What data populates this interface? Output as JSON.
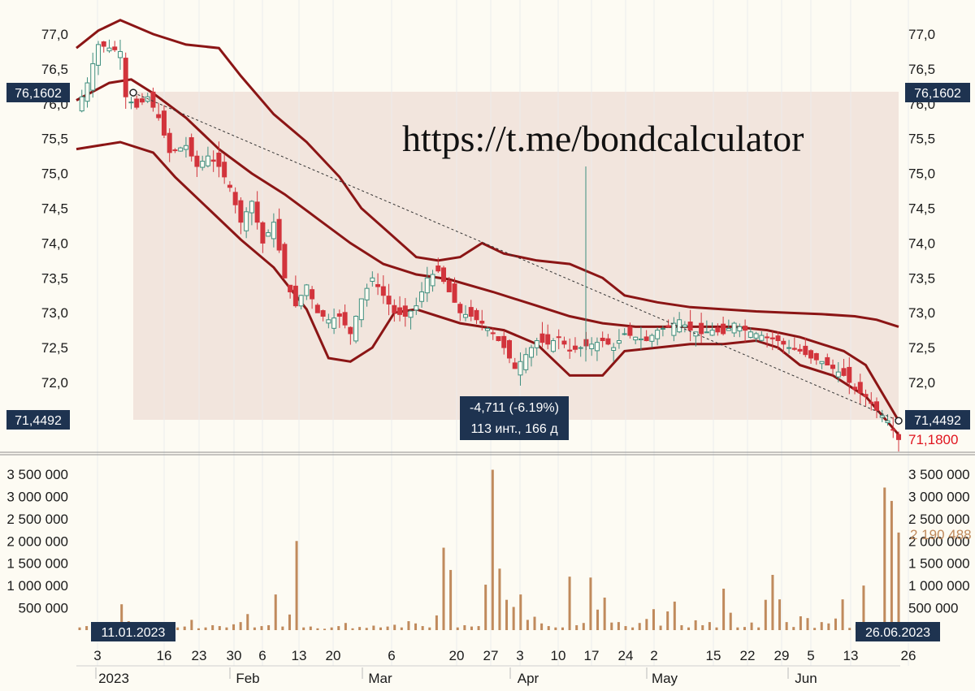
{
  "chart_data": [
    {
      "type": "candlestick",
      "title": "",
      "watermark": "https://t.me/bondcalculator",
      "ylim": [
        71.0,
        77.2
      ],
      "y_ticks": [
        {
          "v": 72.0,
          "label": "72,0"
        },
        {
          "v": 72.5,
          "label": "72,5"
        },
        {
          "v": 73.0,
          "label": "73,0"
        },
        {
          "v": 73.5,
          "label": "73,5"
        },
        {
          "v": 74.0,
          "label": "74,0"
        },
        {
          "v": 74.5,
          "label": "74,5"
        },
        {
          "v": 75.0,
          "label": "75,0"
        },
        {
          "v": 75.5,
          "label": "75,5"
        },
        {
          "v": 76.0,
          "label": "76,0"
        },
        {
          "v": 76.5,
          "label": "76,5"
        },
        {
          "v": 77.0,
          "label": "77,0"
        }
      ],
      "x_ticks": [
        "3",
        "16",
        "23",
        "30",
        "6",
        "13",
        "20",
        "6",
        "20",
        "27",
        "3",
        "10",
        "17",
        "24",
        "2",
        "15",
        "22",
        "29",
        "5",
        "13",
        "26"
      ],
      "month_labels": [
        "2023",
        "Feb",
        "Mar",
        "Apr",
        "May",
        "Jun"
      ],
      "price_tags": {
        "start_level": {
          "value": 76.1602,
          "label": "76,1602"
        },
        "end_level": {
          "value": 71.4492,
          "label": "71,4492"
        },
        "last_price": {
          "value": 71.18,
          "label": "71,1800"
        }
      },
      "measure": {
        "change": "-4,711 (-6.19%)",
        "span": "113 инт., 166 д",
        "start_date": "11.01.2023",
        "end_date": "26.06.2023"
      },
      "colors": {
        "up": "#3f8f7f",
        "down": "#d2343c",
        "bands": "#8b1515",
        "shade": "#f2e5dd",
        "tag_bg": "#1e3350",
        "last_price": "#e0141e"
      },
      "series": {
        "bollinger_upper": [
          [
            0,
            76.8
          ],
          [
            4,
            77.05
          ],
          [
            8,
            77.2
          ],
          [
            14,
            77.0
          ],
          [
            20,
            76.85
          ],
          [
            26,
            76.8
          ],
          [
            30,
            76.4
          ],
          [
            36,
            75.85
          ],
          [
            42,
            75.45
          ],
          [
            48,
            74.95
          ],
          [
            52,
            74.5
          ],
          [
            57,
            74.15
          ],
          [
            62,
            73.8
          ],
          [
            66,
            73.75
          ],
          [
            70,
            73.8
          ],
          [
            74,
            74.0
          ],
          [
            78,
            73.85
          ],
          [
            84,
            73.75
          ],
          [
            90,
            73.7
          ],
          [
            96,
            73.5
          ],
          [
            100,
            73.25
          ],
          [
            106,
            73.15
          ],
          [
            112,
            73.08
          ],
          [
            118,
            73.05
          ],
          [
            124,
            73.02
          ],
          [
            130,
            73.0
          ],
          [
            136,
            72.98
          ],
          [
            142,
            72.95
          ],
          [
            146,
            72.9
          ],
          [
            150,
            72.8
          ]
        ],
        "bollinger_middle": [
          [
            0,
            76.05
          ],
          [
            6,
            76.3
          ],
          [
            10,
            76.35
          ],
          [
            14,
            76.15
          ],
          [
            20,
            75.8
          ],
          [
            26,
            75.35
          ],
          [
            32,
            75.0
          ],
          [
            38,
            74.7
          ],
          [
            44,
            74.35
          ],
          [
            50,
            74.0
          ],
          [
            56,
            73.7
          ],
          [
            62,
            73.55
          ],
          [
            68,
            73.48
          ],
          [
            76,
            73.3
          ],
          [
            84,
            73.1
          ],
          [
            90,
            72.95
          ],
          [
            96,
            72.85
          ],
          [
            102,
            72.8
          ],
          [
            108,
            72.8
          ],
          [
            114,
            72.8
          ],
          [
            120,
            72.8
          ],
          [
            126,
            72.75
          ],
          [
            132,
            72.65
          ],
          [
            136,
            72.55
          ],
          [
            140,
            72.45
          ],
          [
            144,
            72.25
          ],
          [
            150,
            71.45
          ]
        ],
        "bollinger_lower": [
          [
            0,
            75.35
          ],
          [
            8,
            75.45
          ],
          [
            14,
            75.3
          ],
          [
            18,
            74.95
          ],
          [
            24,
            74.5
          ],
          [
            30,
            74.05
          ],
          [
            36,
            73.65
          ],
          [
            42,
            73.05
          ],
          [
            46,
            72.35
          ],
          [
            50,
            72.3
          ],
          [
            54,
            72.5
          ],
          [
            58,
            73.0
          ],
          [
            62,
            73.05
          ],
          [
            70,
            72.85
          ],
          [
            78,
            72.75
          ],
          [
            84,
            72.55
          ],
          [
            90,
            72.1
          ],
          [
            96,
            72.1
          ],
          [
            100,
            72.45
          ],
          [
            106,
            72.5
          ],
          [
            112,
            72.55
          ],
          [
            118,
            72.55
          ],
          [
            124,
            72.6
          ],
          [
            128,
            72.5
          ],
          [
            132,
            72.25
          ],
          [
            138,
            72.1
          ],
          [
            144,
            71.8
          ],
          [
            150,
            71.25
          ]
        ],
        "trendline": [
          [
            10,
            76.16
          ],
          [
            150,
            71.45
          ]
        ],
        "price_close": [
          [
            0,
            75.9
          ],
          [
            2,
            76.3
          ],
          [
            4,
            76.85
          ],
          [
            6,
            76.8
          ],
          [
            8,
            76.75
          ],
          [
            9,
            76.1
          ],
          [
            11,
            75.95
          ],
          [
            13,
            76.1
          ],
          [
            15,
            75.8
          ],
          [
            17,
            75.3
          ],
          [
            20,
            75.4
          ],
          [
            22,
            75.1
          ],
          [
            24,
            75.25
          ],
          [
            26,
            75.1
          ],
          [
            28,
            74.8
          ],
          [
            30,
            74.3
          ],
          [
            32,
            74.6
          ],
          [
            34,
            74.0
          ],
          [
            36,
            74.3
          ],
          [
            38,
            73.5
          ],
          [
            40,
            73.1
          ],
          [
            42,
            73.4
          ],
          [
            44,
            73.0
          ],
          [
            46,
            72.9
          ],
          [
            48,
            72.95
          ],
          [
            50,
            72.7
          ],
          [
            52,
            73.2
          ],
          [
            54,
            73.5
          ],
          [
            56,
            73.25
          ],
          [
            58,
            73.0
          ],
          [
            60,
            72.95
          ],
          [
            62,
            73.1
          ],
          [
            64,
            73.5
          ],
          [
            66,
            73.6
          ],
          [
            68,
            73.3
          ],
          [
            70,
            73.0
          ],
          [
            72,
            72.95
          ],
          [
            74,
            72.85
          ],
          [
            76,
            72.7
          ],
          [
            78,
            72.5
          ],
          [
            80,
            72.2
          ],
          [
            82,
            72.4
          ],
          [
            84,
            72.6
          ],
          [
            86,
            72.55
          ],
          [
            88,
            72.65
          ],
          [
            90,
            72.45
          ],
          [
            92,
            72.5
          ],
          [
            94,
            72.55
          ],
          [
            96,
            72.6
          ],
          [
            98,
            72.5
          ],
          [
            100,
            72.7
          ],
          [
            102,
            72.65
          ],
          [
            104,
            72.6
          ],
          [
            106,
            72.75
          ],
          [
            108,
            72.8
          ],
          [
            110,
            72.9
          ],
          [
            112,
            72.75
          ],
          [
            114,
            72.7
          ],
          [
            116,
            72.75
          ],
          [
            118,
            72.7
          ],
          [
            120,
            72.85
          ],
          [
            122,
            72.75
          ],
          [
            124,
            72.7
          ],
          [
            126,
            72.65
          ],
          [
            128,
            72.6
          ],
          [
            130,
            72.5
          ],
          [
            132,
            72.45
          ],
          [
            134,
            72.35
          ],
          [
            136,
            72.3
          ],
          [
            138,
            72.2
          ],
          [
            140,
            72.1
          ],
          [
            142,
            71.9
          ],
          [
            144,
            71.8
          ],
          [
            146,
            71.6
          ],
          [
            148,
            71.45
          ],
          [
            150,
            71.18
          ]
        ]
      }
    },
    {
      "type": "bar",
      "title": "",
      "ylim": [
        0,
        3800000
      ],
      "y_ticks": [
        {
          "v": 500000,
          "label": "500 000"
        },
        {
          "v": 1000000,
          "label": "1 000 000"
        },
        {
          "v": 1500000,
          "label": "1 500 000"
        },
        {
          "v": 2000000,
          "label": "2 000 000"
        },
        {
          "v": 2500000,
          "label": "2 500 000"
        },
        {
          "v": 3000000,
          "label": "3 000 000"
        },
        {
          "v": 3500000,
          "label": "3 500 000"
        }
      ],
      "last_value": {
        "value": 2190488,
        "label": "2 190 488"
      },
      "bar_color": "#c08a5c",
      "values": [
        60000,
        90000,
        120000,
        40000,
        50000,
        30000,
        580000,
        200000,
        60000,
        30000,
        40000,
        50000,
        30000,
        80000,
        60000,
        80000,
        230000,
        40000,
        60000,
        110000,
        90000,
        60000,
        130000,
        180000,
        360000,
        60000,
        90000,
        110000,
        800000,
        80000,
        350000,
        2000000,
        60000,
        80000,
        40000,
        30000,
        60000,
        90000,
        160000,
        40000,
        70000,
        50000,
        100000,
        60000,
        80000,
        120000,
        60000,
        200000,
        150000,
        90000,
        60000,
        330000,
        1850000,
        1350000,
        60000,
        110000,
        80000,
        90000,
        1020000,
        3600000,
        1380000,
        680000,
        520000,
        800000,
        230000,
        300000,
        150000,
        90000,
        60000,
        60000,
        1200000,
        110000,
        160000,
        1180000,
        460000,
        730000,
        170000,
        180000,
        90000,
        60000,
        160000,
        250000,
        470000,
        100000,
        420000,
        640000,
        110000,
        60000,
        220000,
        110000,
        180000,
        60000,
        930000,
        390000,
        60000,
        70000,
        170000,
        60000,
        680000,
        1240000,
        690000,
        180000,
        70000,
        310000,
        270000,
        50000,
        180000,
        150000,
        260000,
        690000,
        50000,
        120000,
        1000000,
        160000,
        80000,
        3200000,
        2900000,
        2190488
      ]
    }
  ]
}
